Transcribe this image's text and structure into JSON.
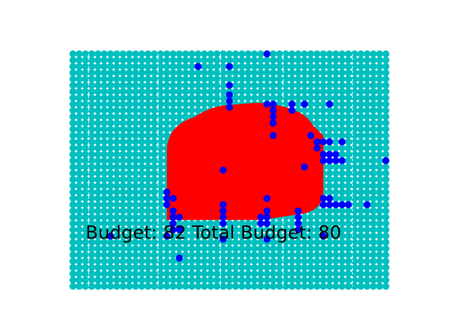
{
  "game": {
    "budget_label": "Budget: ",
    "budget_value": "82",
    "total_budget_label": " Total Budget: ",
    "total_budget_value": "80"
  },
  "colors": {
    "background": "#ffffff",
    "field": "#00bfbf",
    "region": "#ff0000",
    "probe": "#0000ff",
    "grid_line": "#ffffff",
    "text": "#000000"
  },
  "chart_data": {
    "type": "scatter",
    "grid": "dashed vertical lines",
    "xlim": [
      0,
      50
    ],
    "ylim": [
      0,
      37
    ],
    "field_grid": {
      "cols": 51,
      "rows": 38
    },
    "region": {
      "shape": "rounded blob",
      "x_range": [
        15,
        40
      ],
      "y_range": [
        11,
        29
      ]
    },
    "probes": [
      [
        31,
        37
      ],
      [
        20,
        35
      ],
      [
        25,
        35
      ],
      [
        25,
        32
      ],
      [
        25,
        30.5
      ],
      [
        25,
        29.5
      ],
      [
        25,
        28.5
      ],
      [
        31,
        29
      ],
      [
        32,
        29
      ],
      [
        32,
        28
      ],
      [
        32,
        27
      ],
      [
        32,
        26
      ],
      [
        35,
        29
      ],
      [
        35,
        28
      ],
      [
        37,
        29
      ],
      [
        41,
        29
      ],
      [
        32,
        24
      ],
      [
        38,
        24
      ],
      [
        39,
        23
      ],
      [
        39,
        22
      ],
      [
        40,
        23
      ],
      [
        41,
        23
      ],
      [
        43,
        23
      ],
      [
        40,
        21
      ],
      [
        40,
        20
      ],
      [
        41,
        21
      ],
      [
        41,
        20
      ],
      [
        42,
        21
      ],
      [
        42,
        20
      ],
      [
        43,
        20
      ],
      [
        37,
        19
      ],
      [
        50,
        20
      ],
      [
        24,
        18.5
      ],
      [
        15,
        15
      ],
      [
        15,
        14
      ],
      [
        15,
        13
      ],
      [
        16,
        14
      ],
      [
        16,
        12
      ],
      [
        16,
        11
      ],
      [
        17,
        11
      ],
      [
        16,
        10
      ],
      [
        24,
        13
      ],
      [
        24,
        12
      ],
      [
        24,
        11
      ],
      [
        24,
        10
      ],
      [
        31,
        14
      ],
      [
        40,
        14
      ],
      [
        40,
        13
      ],
      [
        41,
        14
      ],
      [
        41,
        13
      ],
      [
        42,
        13
      ],
      [
        43,
        13
      ],
      [
        44,
        13
      ],
      [
        47,
        13
      ],
      [
        30,
        11
      ],
      [
        30,
        10
      ],
      [
        31,
        12
      ],
      [
        31,
        11
      ],
      [
        31,
        10
      ],
      [
        36,
        12
      ],
      [
        36,
        11
      ],
      [
        36,
        10
      ],
      [
        36,
        9
      ],
      [
        16,
        9
      ],
      [
        17,
        9
      ],
      [
        15,
        8
      ],
      [
        6,
        8
      ],
      [
        24,
        7.5
      ],
      [
        31,
        7.5
      ],
      [
        40,
        8
      ],
      [
        17,
        4.5
      ]
    ]
  }
}
